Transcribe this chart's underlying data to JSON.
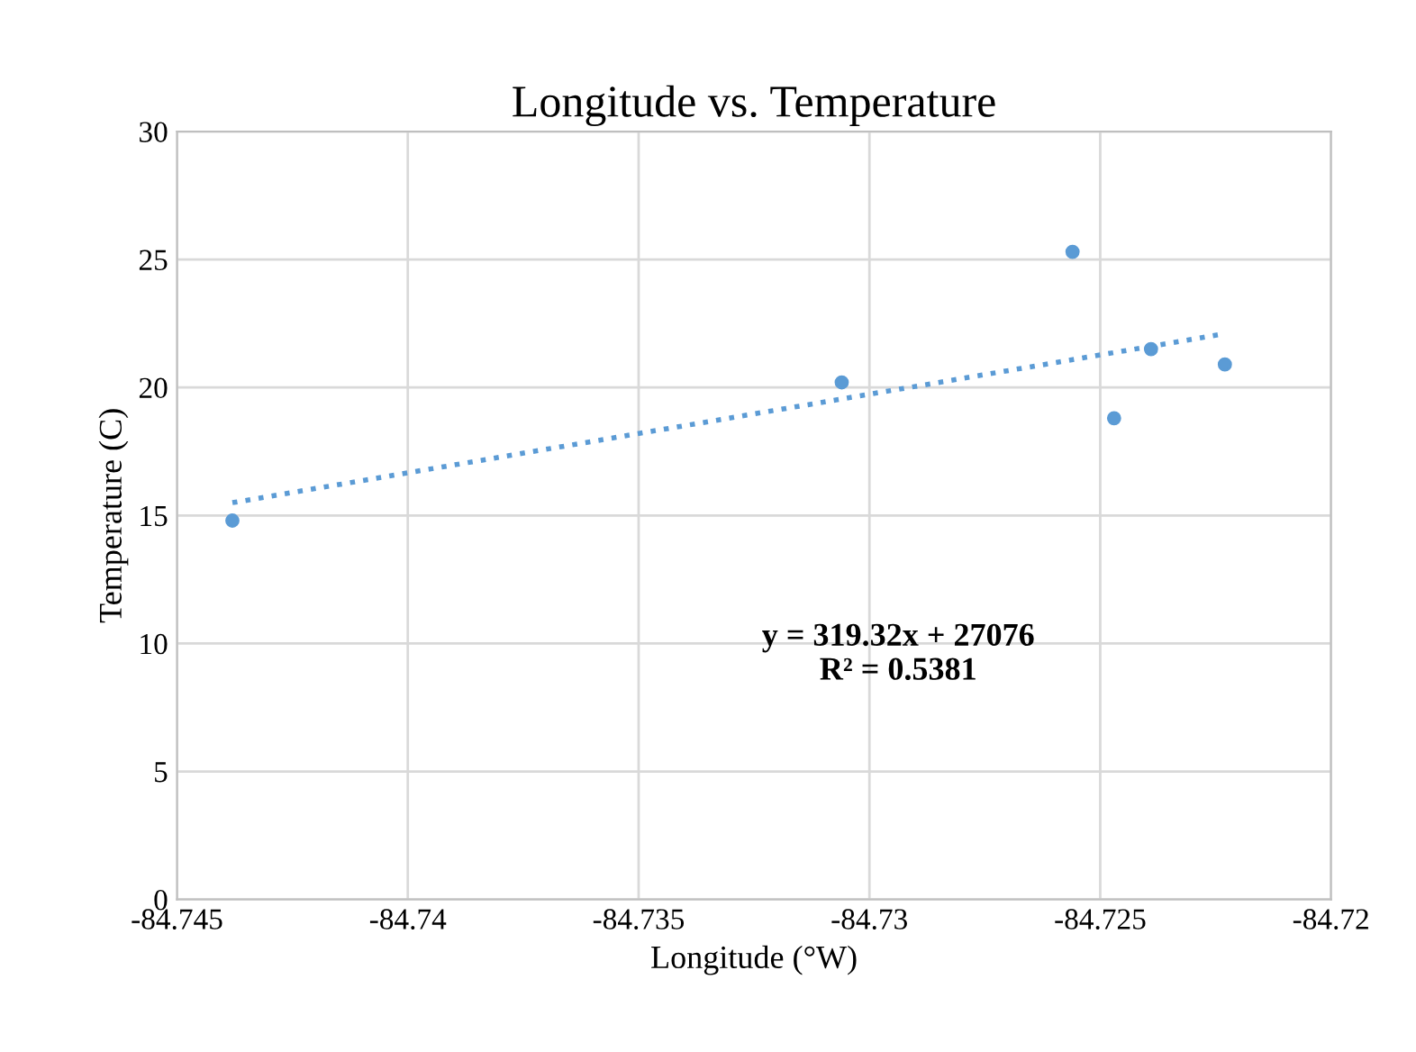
{
  "chart_data": {
    "type": "scatter",
    "title": "Longitude vs. Temperature",
    "xlabel": "Longitude (°W)",
    "ylabel": "Temperature (C)",
    "series": [
      {
        "color": "#5b9bd5",
        "x": [
          -84.7438,
          -84.7306,
          -84.7256,
          -84.7247,
          -84.7239,
          -84.7223
        ],
        "values": [
          14.8,
          20.2,
          25.3,
          18.8,
          21.5,
          20.9
        ],
        "marker": "circle"
      },
      {
        "type": "line",
        "color": "#5b9bd5",
        "x": [
          -84.7438,
          -84.7223
        ],
        "values": [
          15.5,
          22.1
        ],
        "line_style": "dotted",
        "marker": "none"
      }
    ],
    "annotations": [
      "y = 319.32x + 27076\nR² = 0.5381"
    ],
    "xlim": [
      -84.745,
      -84.72
    ],
    "xticks": [
      {
        "value": -84.745,
        "label": "-84.745"
      },
      {
        "value": -84.74,
        "label": "-84.74"
      },
      {
        "value": -84.735,
        "label": "-84.735"
      },
      {
        "value": -84.73,
        "label": "-84.73"
      },
      {
        "value": -84.725,
        "label": "-84.725"
      },
      {
        "value": -84.72,
        "label": "-84.72"
      }
    ],
    "ylim": [
      0,
      30
    ],
    "yticks": [
      0,
      5,
      10,
      15,
      20,
      25,
      30
    ],
    "grid": true,
    "legend": false
  }
}
